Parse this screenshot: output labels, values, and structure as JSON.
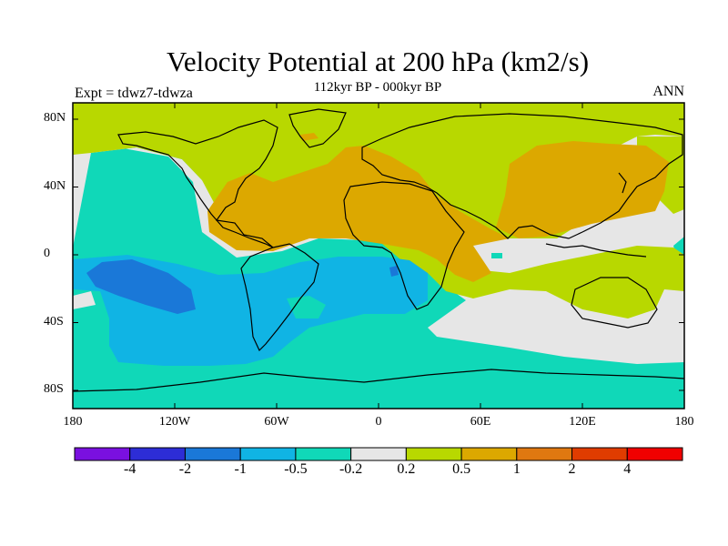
{
  "title": "Velocity Potential at 200 hPa (km2/s)",
  "subtitle": "112kyr BP - 000kyr BP",
  "left_label": "Expt = tdwz7-tdwza",
  "right_label": "ANN",
  "lat_labels": [
    "80N",
    "40N",
    "0",
    "40S",
    "80S"
  ],
  "lon_labels": [
    "180",
    "120W",
    "60W",
    "0",
    "60E",
    "120E",
    "180"
  ],
  "colorbar": {
    "labels": [
      "-4",
      "-2",
      "-1",
      "-0.5",
      "-0.2",
      "0.2",
      "0.5",
      "1",
      "2",
      "4"
    ],
    "colors": [
      "#7a10e0",
      "#2d2dd6",
      "#1a78d8",
      "#10b4e4",
      "#10d8b8",
      "#e6e6e6",
      "#b8d800",
      "#dca800",
      "#e07810",
      "#e03c00",
      "#f00000"
    ]
  }
}
